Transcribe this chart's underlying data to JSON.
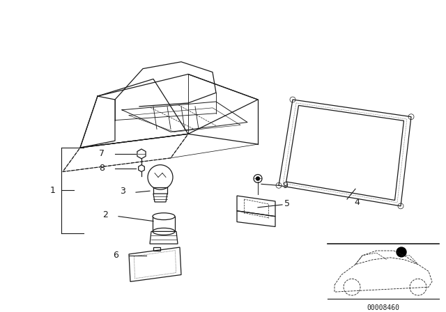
{
  "bg_color": "#ffffff",
  "line_color": "#1a1a1a",
  "fig_width": 6.4,
  "fig_height": 4.48,
  "dpi": 100,
  "part_number_text": "00008460"
}
